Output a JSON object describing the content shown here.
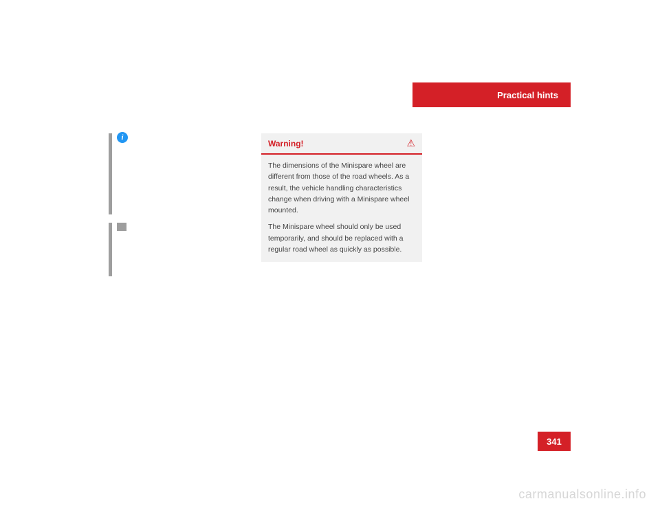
{
  "header": {
    "tab_label": "Practical hints",
    "tab_bg": "#d42027",
    "tab_color": "#ffffff"
  },
  "info_icon": {
    "glyph": "i",
    "bg": "#2196f3"
  },
  "warning": {
    "title": "Warning!",
    "title_color": "#d42027",
    "icon": "⚠",
    "body1": "The dimensions of the Minispare wheel are different from those of the road wheels. As a result, the vehicle handling characteristics change when driving with a Minispare wheel mounted.",
    "body2": "The Minispare wheel should only be used temporarily, and should be replaced with a regular road wheel as quickly as possible.",
    "bg": "#f1f1f1"
  },
  "page_number": "341",
  "watermark": "carmanualsonline.info"
}
